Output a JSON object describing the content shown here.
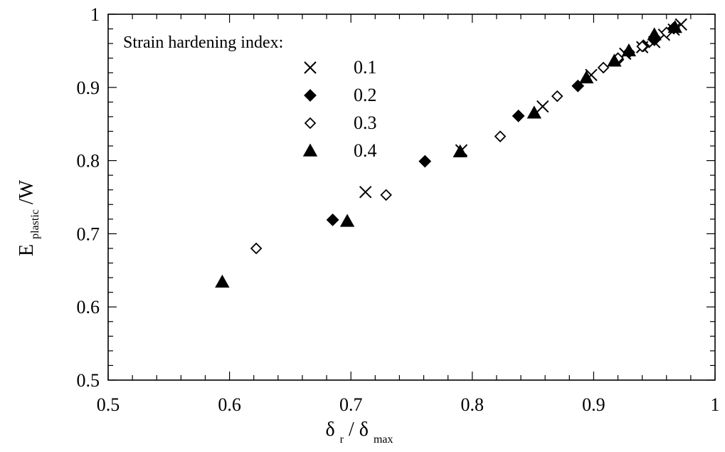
{
  "chart_data": {
    "type": "scatter",
    "title": "",
    "xlabel": {
      "symbol": "δ",
      "sub1": "r",
      "slash": "/",
      "sub2": "max"
    },
    "ylabel": {
      "main": "E",
      "sub": "plastic",
      "suffix": "/W"
    },
    "xlim": [
      0.5,
      1.0
    ],
    "ylim": [
      0.5,
      1.0
    ],
    "x_ticks": [
      0.5,
      0.6,
      0.7,
      0.8,
      0.9,
      1.0
    ],
    "y_ticks": [
      0.5,
      0.6,
      0.7,
      0.8,
      0.9,
      1.0
    ],
    "x_tick_labels": [
      "0.5",
      "0.6",
      "0.7",
      "0.8",
      "0.9",
      "1"
    ],
    "y_tick_labels": [
      "0.5",
      "0.6",
      "0.7",
      "0.8",
      "0.9",
      "1"
    ],
    "grid": false,
    "legend": {
      "title": "Strain hardening index:",
      "placement": "top-left"
    },
    "series": [
      {
        "name": "0.1",
        "marker": "x",
        "color": "#000000",
        "x": [
          0.712,
          0.791,
          0.858,
          0.898,
          0.926,
          0.94,
          0.95,
          0.958,
          0.966,
          0.972
        ],
        "y": [
          0.757,
          0.814,
          0.874,
          0.917,
          0.946,
          0.955,
          0.962,
          0.972,
          0.979,
          0.986
        ]
      },
      {
        "name": "0.2",
        "marker": "diamond-filled",
        "color": "#000000",
        "x": [
          0.685,
          0.761,
          0.838,
          0.887,
          0.92,
          0.929,
          0.941,
          0.95,
          0.966
        ],
        "y": [
          0.719,
          0.799,
          0.861,
          0.902,
          0.938,
          0.948,
          0.957,
          0.965,
          0.981
        ]
      },
      {
        "name": "0.3",
        "marker": "diamond-open",
        "color": "#000000",
        "x": [
          0.622,
          0.729,
          0.823,
          0.87,
          0.908,
          0.92,
          0.94,
          0.96
        ],
        "y": [
          0.68,
          0.753,
          0.833,
          0.888,
          0.927,
          0.94,
          0.956,
          0.975
        ]
      },
      {
        "name": "0.4",
        "marker": "triangle-filled",
        "color": "#000000",
        "x": [
          0.594,
          0.697,
          0.79,
          0.851,
          0.894,
          0.917,
          0.929,
          0.95,
          0.967
        ],
        "y": [
          0.634,
          0.717,
          0.812,
          0.865,
          0.913,
          0.936,
          0.95,
          0.972,
          0.982
        ]
      }
    ]
  }
}
